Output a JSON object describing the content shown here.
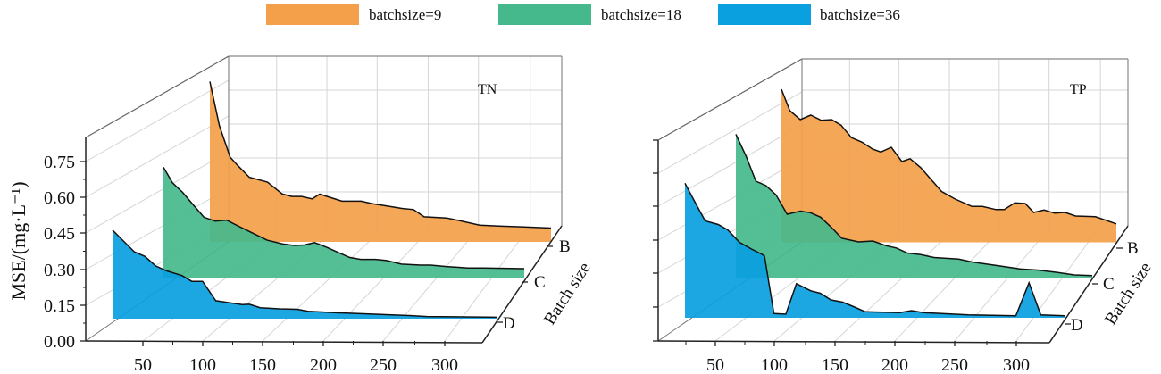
{
  "legend": [
    {
      "label": "batchsize=9",
      "color": "#f4a04a"
    },
    {
      "label": "batchsize=18",
      "color": "#45b98c"
    },
    {
      "label": "batchsize=36",
      "color": "#0aa0e0"
    }
  ],
  "chart_data": [
    {
      "type": "area",
      "style": "3d-waterfall",
      "panel_label": "TN",
      "ylabel": "MSE/(mg·L⁻¹)",
      "depth_label": "Batch size",
      "depth_categories": [
        "B",
        "C",
        "D"
      ],
      "x_ticks": [
        "50",
        "100",
        "150",
        "200",
        "250",
        "300"
      ],
      "y_ticks": [
        "0.00",
        "0.15",
        "0.30",
        "0.45",
        "0.60",
        "0.75"
      ],
      "ylim": [
        0,
        0.85
      ],
      "grid": true,
      "series": [
        {
          "name": "batchsize=9",
          "depth": "B",
          "color": "#f4a04a",
          "x": [
            10,
            19,
            29,
            36,
            47,
            64,
            78,
            87,
            96,
            106,
            113,
            120,
            134,
            152,
            162,
            176,
            190,
            201,
            211,
            232,
            243,
            263,
            281,
            302,
            330
          ],
          "y": [
            0.67,
            0.485,
            0.354,
            0.32,
            0.27,
            0.25,
            0.2,
            0.19,
            0.19,
            0.18,
            0.2,
            0.19,
            0.17,
            0.17,
            0.16,
            0.15,
            0.14,
            0.135,
            0.105,
            0.1,
            0.09,
            0.07,
            0.066,
            0.063,
            0.058
          ]
        },
        {
          "name": "batchsize=18",
          "depth": "C",
          "color": "#45b98c",
          "x": [
            10,
            18,
            27,
            36,
            46,
            56,
            66,
            76,
            89,
            102,
            116,
            126,
            135,
            144,
            155,
            175,
            185,
            198,
            208,
            221,
            238,
            247,
            261,
            280,
            294,
            330
          ],
          "y": [
            0.465,
            0.4,
            0.36,
            0.31,
            0.256,
            0.24,
            0.244,
            0.22,
            0.19,
            0.16,
            0.144,
            0.138,
            0.14,
            0.15,
            0.13,
            0.088,
            0.08,
            0.08,
            0.075,
            0.06,
            0.056,
            0.056,
            0.05,
            0.044,
            0.044,
            0.041
          ]
        },
        {
          "name": "batchsize=36",
          "depth": "D",
          "color": "#0aa0e0",
          "x": [
            10,
            18,
            28,
            37,
            46,
            55,
            68,
            76,
            85,
            96,
            108,
            118,
            124,
            133,
            149,
            164,
            173,
            195,
            226,
            257,
            272,
            330
          ],
          "y": [
            0.37,
            0.33,
            0.28,
            0.26,
            0.22,
            0.2,
            0.18,
            0.156,
            0.156,
            0.075,
            0.066,
            0.059,
            0.06,
            0.046,
            0.041,
            0.039,
            0.031,
            0.025,
            0.019,
            0.013,
            0.009,
            0.006
          ]
        }
      ]
    },
    {
      "type": "area",
      "style": "3d-waterfall",
      "panel_label": "TP",
      "depth_label": "Batch size",
      "depth_categories": [
        "B",
        "C",
        "D"
      ],
      "x_ticks": [
        "50",
        "100",
        "150",
        "200",
        "250",
        "300"
      ],
      "ylim": [
        0,
        0.9
      ],
      "grid": true,
      "series": [
        {
          "name": "batchsize=9",
          "depth": "B",
          "color": "#f4a04a",
          "x": [
            10,
            18,
            28,
            38,
            48,
            58,
            67,
            77,
            87,
            97,
            105,
            115,
            125,
            133,
            143,
            163,
            176,
            192,
            202,
            215,
            223,
            233,
            243,
            251,
            261,
            271,
            281,
            291,
            310,
            330
          ],
          "y": [
            0.686,
            0.59,
            0.55,
            0.57,
            0.547,
            0.55,
            0.525,
            0.469,
            0.449,
            0.418,
            0.405,
            0.426,
            0.362,
            0.375,
            0.335,
            0.228,
            0.194,
            0.161,
            0.161,
            0.147,
            0.147,
            0.177,
            0.174,
            0.134,
            0.145,
            0.131,
            0.134,
            0.118,
            0.115,
            0.083
          ]
        },
        {
          "name": "batchsize=18",
          "depth": "C",
          "color": "#45b98c",
          "x": [
            10,
            19,
            28,
            37,
            46,
            56,
            68,
            77,
            86,
            96,
            105,
            120,
            133,
            145,
            154,
            164,
            176,
            188,
            210,
            222,
            250,
            265,
            281,
            299,
            314,
            330
          ],
          "y": [
            0.646,
            0.55,
            0.436,
            0.416,
            0.375,
            0.288,
            0.302,
            0.295,
            0.275,
            0.228,
            0.181,
            0.164,
            0.168,
            0.147,
            0.137,
            0.114,
            0.107,
            0.094,
            0.087,
            0.074,
            0.054,
            0.043,
            0.038,
            0.027,
            0.016,
            0.013
          ]
        },
        {
          "name": "batchsize=36",
          "depth": "D",
          "color": "#0aa0e0",
          "x": [
            10,
            19,
            27,
            38,
            46,
            56,
            66,
            75,
            77,
            85,
            95,
            104,
            116,
            124,
            133,
            143,
            152,
            162,
            191,
            201,
            211,
            249,
            289,
            300,
            310,
            330
          ],
          "y": [
            0.603,
            0.512,
            0.434,
            0.418,
            0.394,
            0.338,
            0.308,
            0.284,
            0.277,
            0.019,
            0.016,
            0.153,
            0.121,
            0.11,
            0.08,
            0.07,
            0.05,
            0.027,
            0.023,
            0.032,
            0.023,
            0.013,
            0.009,
            0.157,
            0.013,
            0.009
          ]
        }
      ]
    }
  ]
}
